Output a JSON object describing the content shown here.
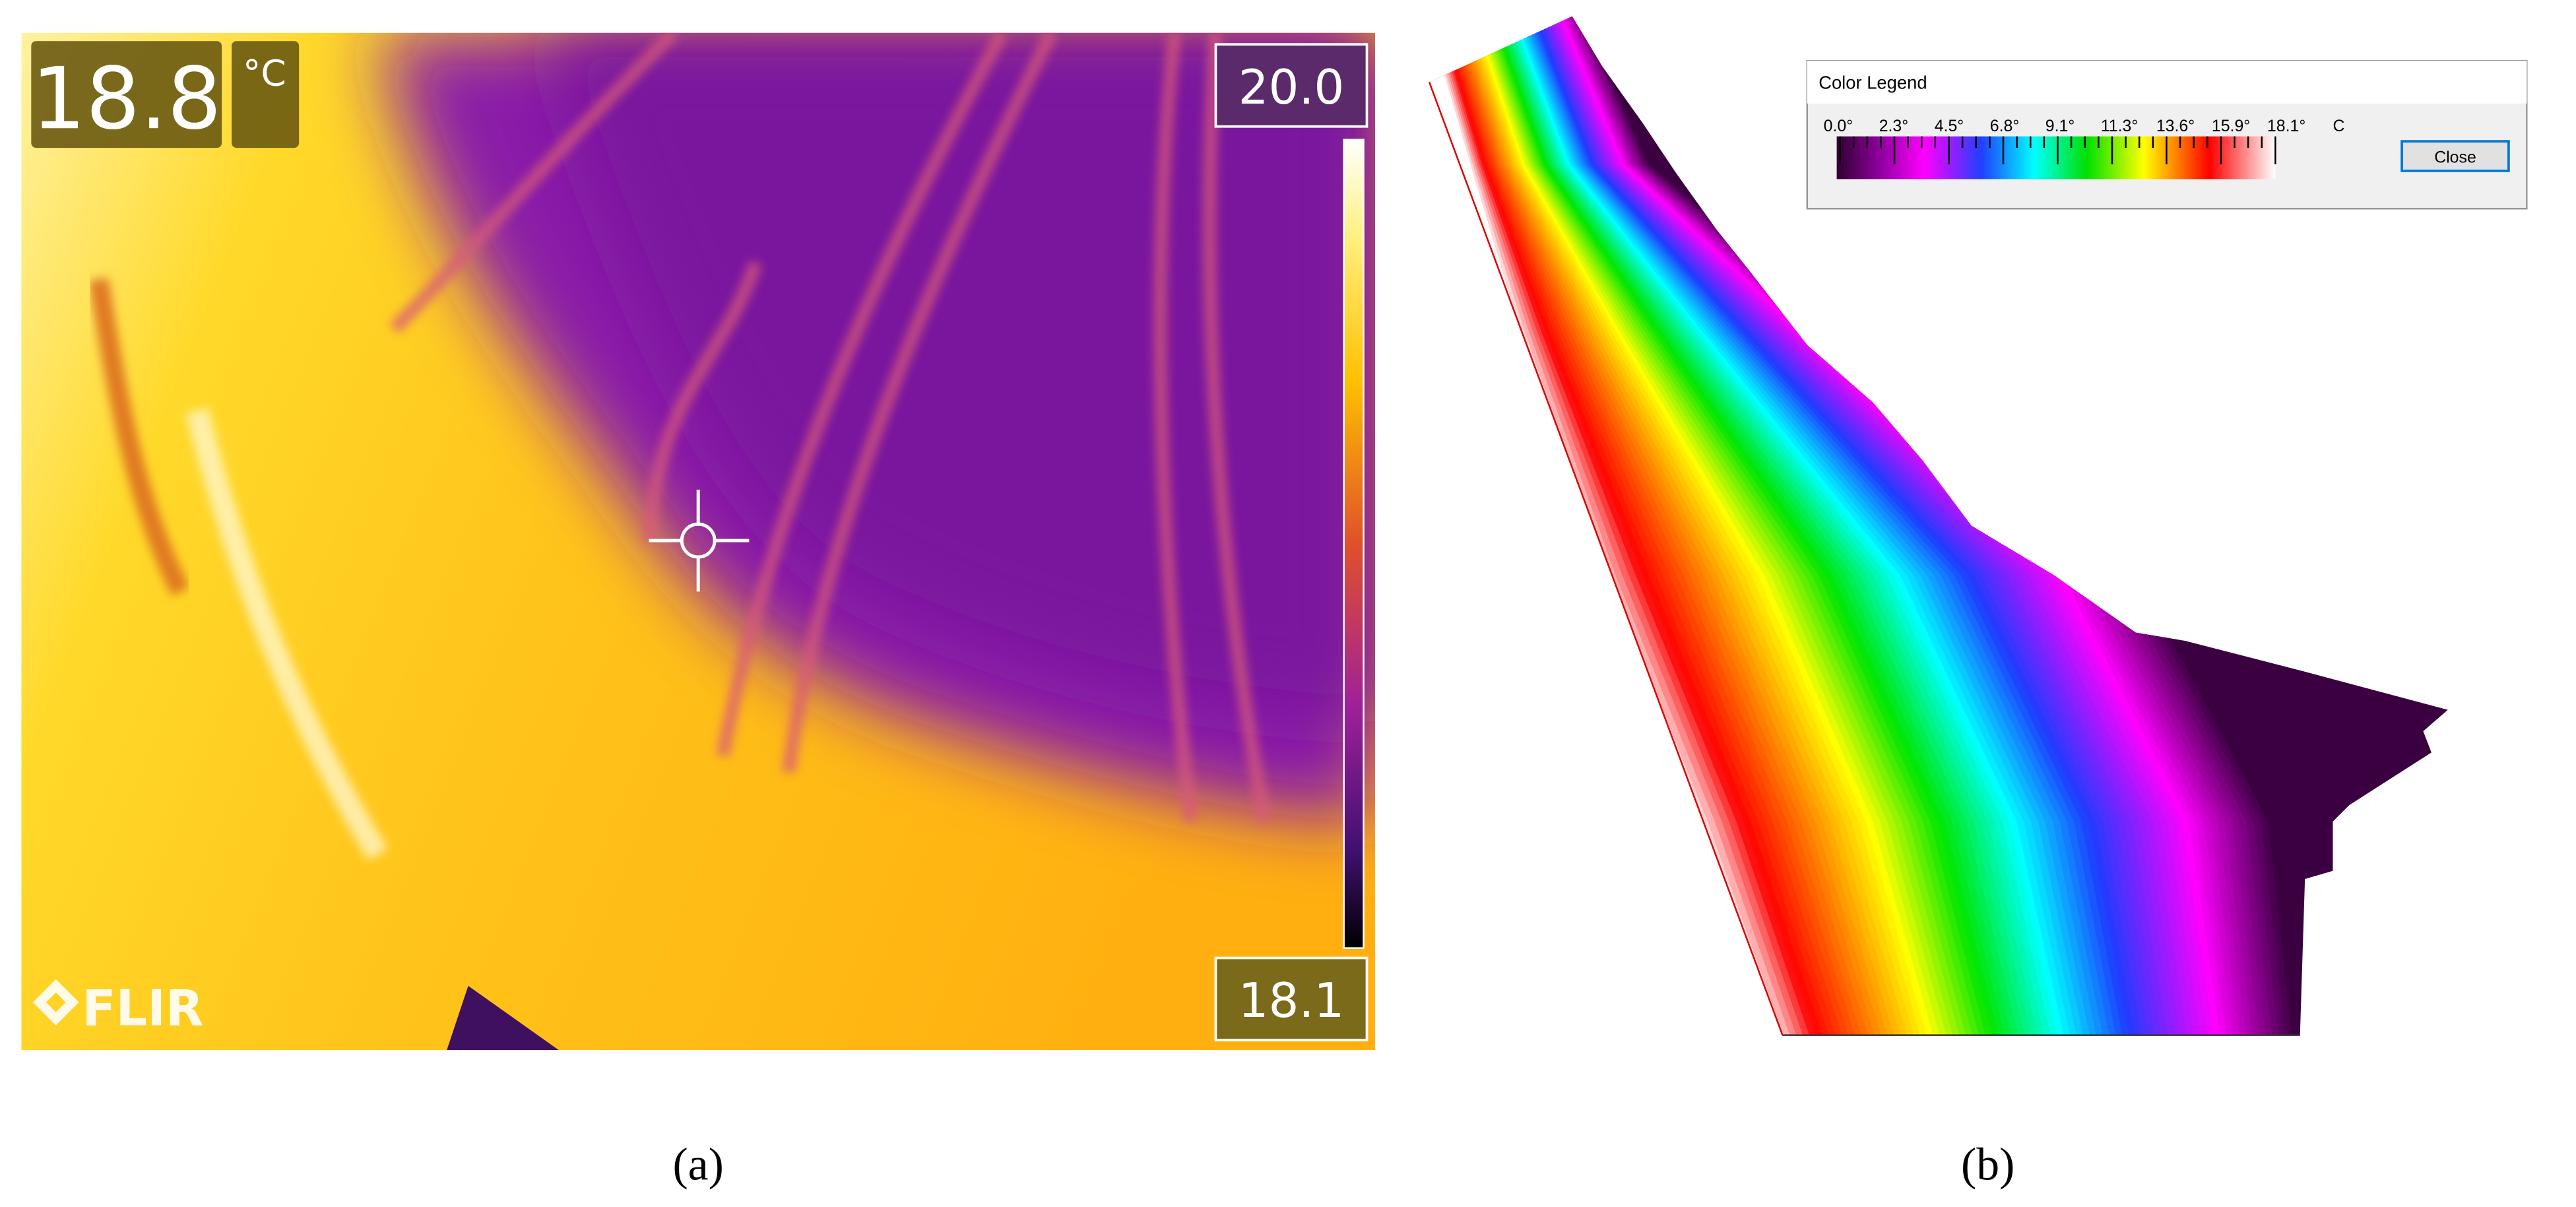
{
  "panel_a": {
    "spot_temperature": "18.8",
    "unit": "°C",
    "scale_max": "20.0",
    "scale_min": "18.1",
    "logo": "FLIR",
    "caption": "(a)"
  },
  "panel_b": {
    "legend_title": "Color Legend",
    "legend_ticks": [
      "0.0°",
      "2.3°",
      "4.5°",
      "6.8°",
      "9.1°",
      "11.3°",
      "13.6°",
      "15.9°",
      "18.1°"
    ],
    "legend_unit": "C",
    "button": "Close",
    "caption": "(b)"
  }
}
